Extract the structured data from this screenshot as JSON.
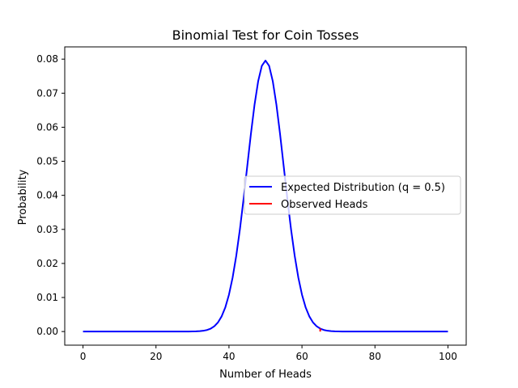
{
  "chart_data": {
    "type": "line",
    "title": "Binomial Test for Coin Tosses",
    "xlabel": "Number of Heads",
    "ylabel": "Probability",
    "xlim": [
      -5,
      105
    ],
    "ylim": [
      -0.004,
      0.0836
    ],
    "grid": false,
    "legend_placement": "center-right",
    "x_ticks": [
      0,
      20,
      40,
      60,
      80,
      100
    ],
    "x_tick_labels": [
      "0",
      "20",
      "40",
      "60",
      "80",
      "100"
    ],
    "y_ticks": [
      0,
      0.01,
      0.02,
      0.03,
      0.04,
      0.05,
      0.06,
      0.07,
      0.08
    ],
    "y_tick_labels": [
      "0.00",
      "0.01",
      "0.02",
      "0.03",
      "0.04",
      "0.05",
      "0.06",
      "0.07",
      "0.08"
    ],
    "series": [
      {
        "name": "Expected Distribution (q = 0.5)",
        "color": "#0000ff",
        "distribution": "binomial",
        "n": 100,
        "p": 0.5,
        "x_range": [
          0,
          100
        ]
      },
      {
        "name": "Observed Heads",
        "color": "#ff0000",
        "x": [
          65,
          65
        ],
        "y": [
          0.0,
          0.0009
        ]
      }
    ]
  }
}
